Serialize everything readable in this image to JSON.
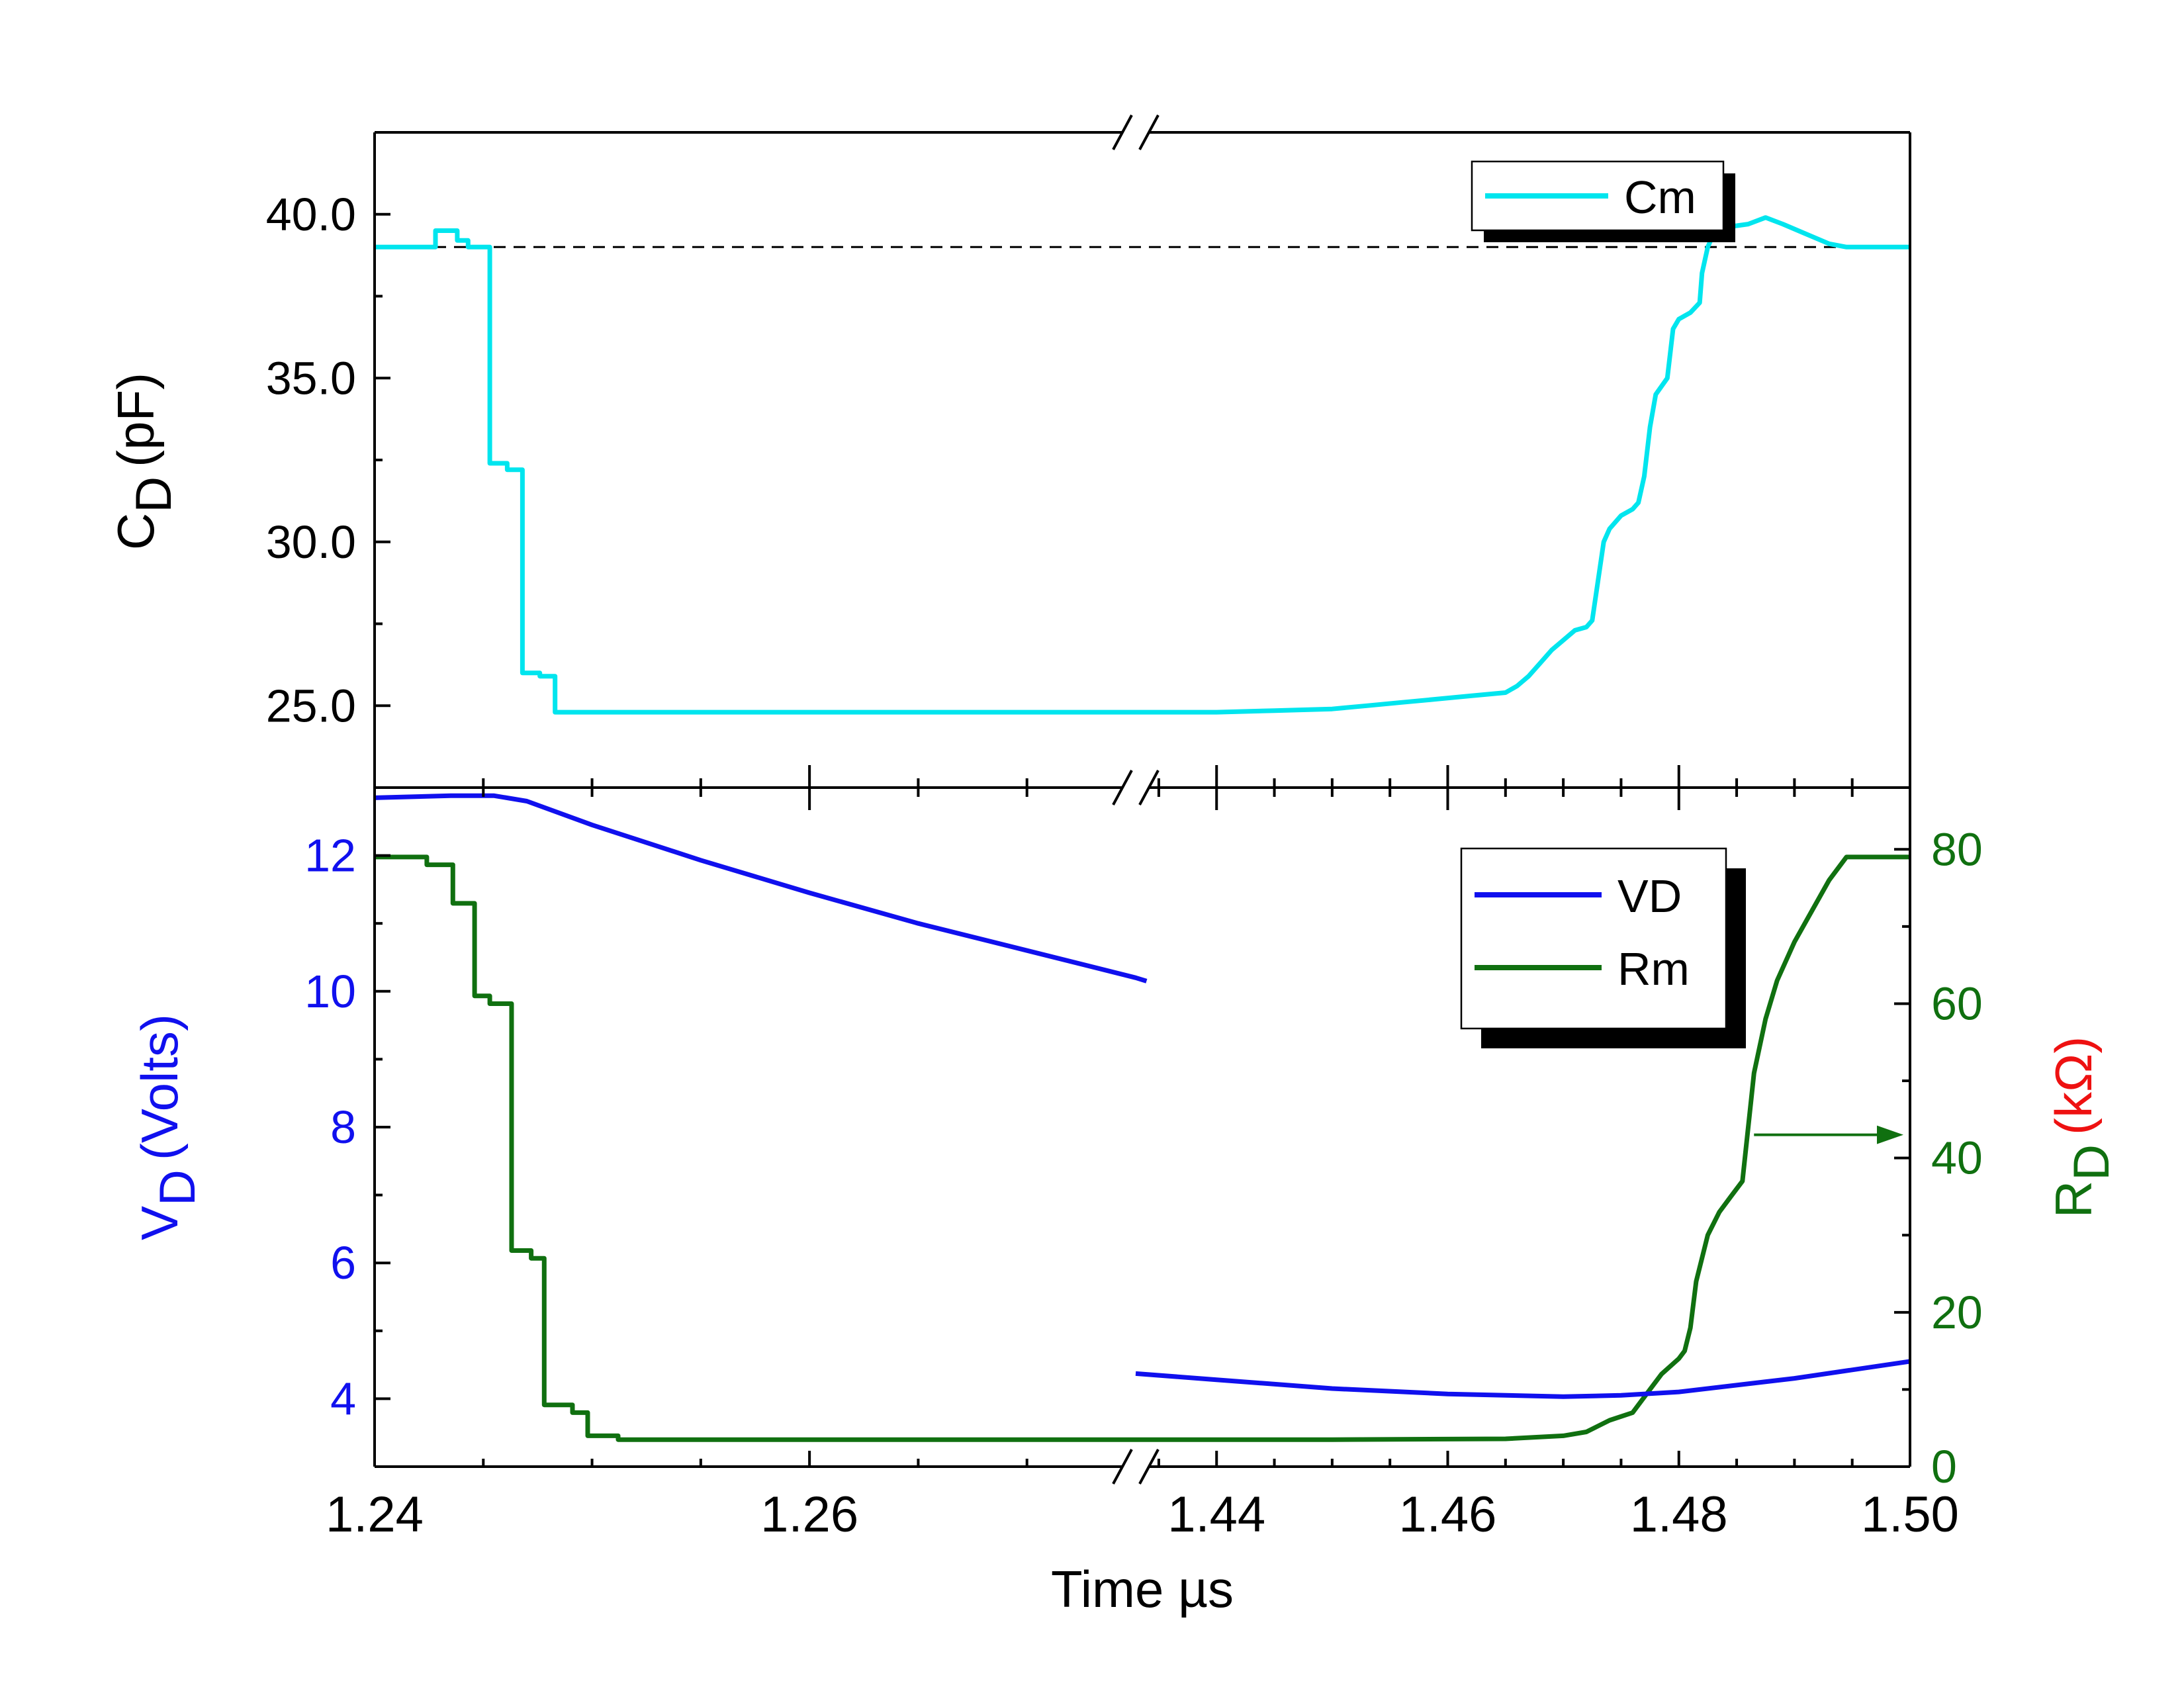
{
  "chart_data": [
    {
      "panel": "upper",
      "type": "line",
      "ylabel": "C",
      "ylabel_sub": "D",
      "ylabel_unit": "(pF)",
      "ylim": [
        22.5,
        42.5
      ],
      "yticks": [
        "25.0",
        "30.0",
        "35.0",
        "40.0"
      ],
      "reference_line": {
        "y": 39.0,
        "style": "dashed"
      },
      "legend": {
        "position": "top-right",
        "entries": [
          "Cm"
        ]
      },
      "colors": {
        "Cm": "#00e5ee"
      },
      "series": [
        {
          "name": "Cm",
          "segments": [
            [
              [
                1.24,
                39.0
              ],
              [
                1.2428,
                39.0
              ],
              [
                1.2428,
                39.5
              ],
              [
                1.2438,
                39.5
              ],
              [
                1.2438,
                39.2
              ],
              [
                1.2443,
                39.2
              ],
              [
                1.2443,
                39.0
              ],
              [
                1.2453,
                39.0
              ],
              [
                1.2453,
                32.4
              ],
              [
                1.2461,
                32.4
              ],
              [
                1.2461,
                32.2
              ],
              [
                1.2468,
                32.2
              ],
              [
                1.2468,
                26.0
              ],
              [
                1.2476,
                26.0
              ],
              [
                1.2476,
                25.9
              ],
              [
                1.2483,
                25.9
              ],
              [
                1.2483,
                24.8
              ],
              [
                1.2495,
                24.8
              ],
              [
                1.2499,
                24.8
              ],
              [
                1.275,
                24.8
              ]
            ],
            [
              [
                1.433,
                24.8
              ],
              [
                1.44,
                24.8
              ],
              [
                1.445,
                24.85
              ],
              [
                1.45,
                24.9
              ],
              [
                1.453,
                25.0
              ],
              [
                1.456,
                25.1
              ],
              [
                1.459,
                25.2
              ],
              [
                1.462,
                25.3
              ],
              [
                1.465,
                25.4
              ],
              [
                1.466,
                25.6
              ],
              [
                1.467,
                25.9
              ],
              [
                1.468,
                26.3
              ],
              [
                1.469,
                26.7
              ],
              [
                1.47,
                27.0
              ],
              [
                1.471,
                27.3
              ],
              [
                1.472,
                27.4
              ],
              [
                1.4725,
                27.6
              ],
              [
                1.473,
                28.8
              ],
              [
                1.4735,
                30.0
              ],
              [
                1.474,
                30.4
              ],
              [
                1.475,
                30.8
              ],
              [
                1.476,
                31.0
              ],
              [
                1.4765,
                31.2
              ],
              [
                1.477,
                32.0
              ],
              [
                1.4775,
                33.5
              ],
              [
                1.478,
                34.5
              ],
              [
                1.479,
                35.0
              ],
              [
                1.4795,
                36.5
              ],
              [
                1.48,
                36.8
              ],
              [
                1.481,
                37.0
              ],
              [
                1.4818,
                37.3
              ],
              [
                1.482,
                38.2
              ],
              [
                1.4825,
                39.0
              ],
              [
                1.483,
                39.4
              ],
              [
                1.484,
                39.6
              ],
              [
                1.486,
                39.7
              ],
              [
                1.4875,
                39.9
              ],
              [
                1.489,
                39.7
              ],
              [
                1.491,
                39.4
              ],
              [
                1.493,
                39.1
              ],
              [
                1.4945,
                39.0
              ],
              [
                1.5,
                39.0
              ]
            ]
          ]
        }
      ]
    },
    {
      "panel": "lower",
      "type": "line",
      "xlabel": "Time µs",
      "xticks": [
        "1.24",
        "1.26",
        "1.44",
        "1.46",
        "1.48",
        "1.50"
      ],
      "xbreak": [
        1.275,
        1.433
      ],
      "ylabel": "V",
      "ylabel_sub": "D",
      "ylabel_unit": "(Volts)",
      "ylim": [
        3.0,
        13.0
      ],
      "yticks": [
        "4",
        "6",
        "8",
        "10",
        "12"
      ],
      "y2label": "R",
      "y2label_sub": "D",
      "y2label_unit": "(kΩ)",
      "y2lim": [
        0,
        88
      ],
      "y2ticks": [
        "0",
        "20",
        "40",
        "60",
        "80"
      ],
      "legend": {
        "position": "top-right",
        "entries": [
          "VD",
          "Rm"
        ]
      },
      "colors": {
        "VD": "#1010ee",
        "Rm": "#107010",
        "y2unit": "#ee1111"
      },
      "series": [
        {
          "name": "VD",
          "axis": "left",
          "segments": [
            [
              [
                1.24,
                12.85
              ],
              [
                1.2435,
                12.88
              ],
              [
                1.2455,
                12.88
              ],
              [
                1.247,
                12.8
              ],
              [
                1.25,
                12.45
              ],
              [
                1.255,
                11.93
              ],
              [
                1.26,
                11.45
              ],
              [
                1.265,
                11.0
              ],
              [
                1.27,
                10.6
              ],
              [
                1.275,
                10.2
              ],
              [
                1.2755,
                10.15
              ]
            ],
            [
              [
                1.433,
                4.37
              ],
              [
                1.44,
                4.28
              ],
              [
                1.45,
                4.15
              ],
              [
                1.46,
                4.07
              ],
              [
                1.47,
                4.03
              ],
              [
                1.475,
                4.05
              ],
              [
                1.48,
                4.1
              ],
              [
                1.49,
                4.3
              ],
              [
                1.5,
                4.55
              ]
            ]
          ]
        },
        {
          "name": "Rm",
          "axis": "right",
          "segments": [
            [
              [
                1.24,
                79
              ],
              [
                1.2424,
                79
              ],
              [
                1.2424,
                78
              ],
              [
                1.2436,
                78
              ],
              [
                1.2436,
                73
              ],
              [
                1.2446,
                73
              ],
              [
                1.2446,
                61
              ],
              [
                1.2453,
                61
              ],
              [
                1.2453,
                60
              ],
              [
                1.2463,
                60
              ],
              [
                1.2463,
                28
              ],
              [
                1.2472,
                28
              ],
              [
                1.2472,
                27
              ],
              [
                1.2478,
                27
              ],
              [
                1.2478,
                8
              ],
              [
                1.2491,
                8
              ],
              [
                1.2491,
                7
              ],
              [
                1.2498,
                7
              ],
              [
                1.2498,
                4
              ],
              [
                1.2512,
                4
              ],
              [
                1.2512,
                3.5
              ],
              [
                1.275,
                3.5
              ]
            ],
            [
              [
                1.433,
                3.5
              ],
              [
                1.45,
                3.5
              ],
              [
                1.465,
                3.6
              ],
              [
                1.47,
                4.0
              ],
              [
                1.472,
                4.5
              ],
              [
                1.474,
                6.0
              ],
              [
                1.476,
                7.0
              ],
              [
                1.4775,
                10.0
              ],
              [
                1.4785,
                12.0
              ],
              [
                1.48,
                14.0
              ],
              [
                1.4805,
                15.0
              ],
              [
                1.481,
                18.0
              ],
              [
                1.4815,
                24.0
              ],
              [
                1.4825,
                30.0
              ],
              [
                1.4835,
                33.0
              ],
              [
                1.4845,
                35.0
              ],
              [
                1.4855,
                37.0
              ],
              [
                1.4865,
                51.0
              ],
              [
                1.4875,
                58.0
              ],
              [
                1.4885,
                63.0
              ],
              [
                1.49,
                68.0
              ],
              [
                1.4915,
                72.0
              ],
              [
                1.493,
                76.0
              ],
              [
                1.4945,
                79.0
              ],
              [
                1.5,
                79.0
              ]
            ]
          ]
        }
      ],
      "annotation": {
        "type": "arrow",
        "from": [
          1.4865,
          43.0
        ],
        "to": [
          1.5,
          43.0
        ],
        "color": "#107010"
      }
    }
  ]
}
